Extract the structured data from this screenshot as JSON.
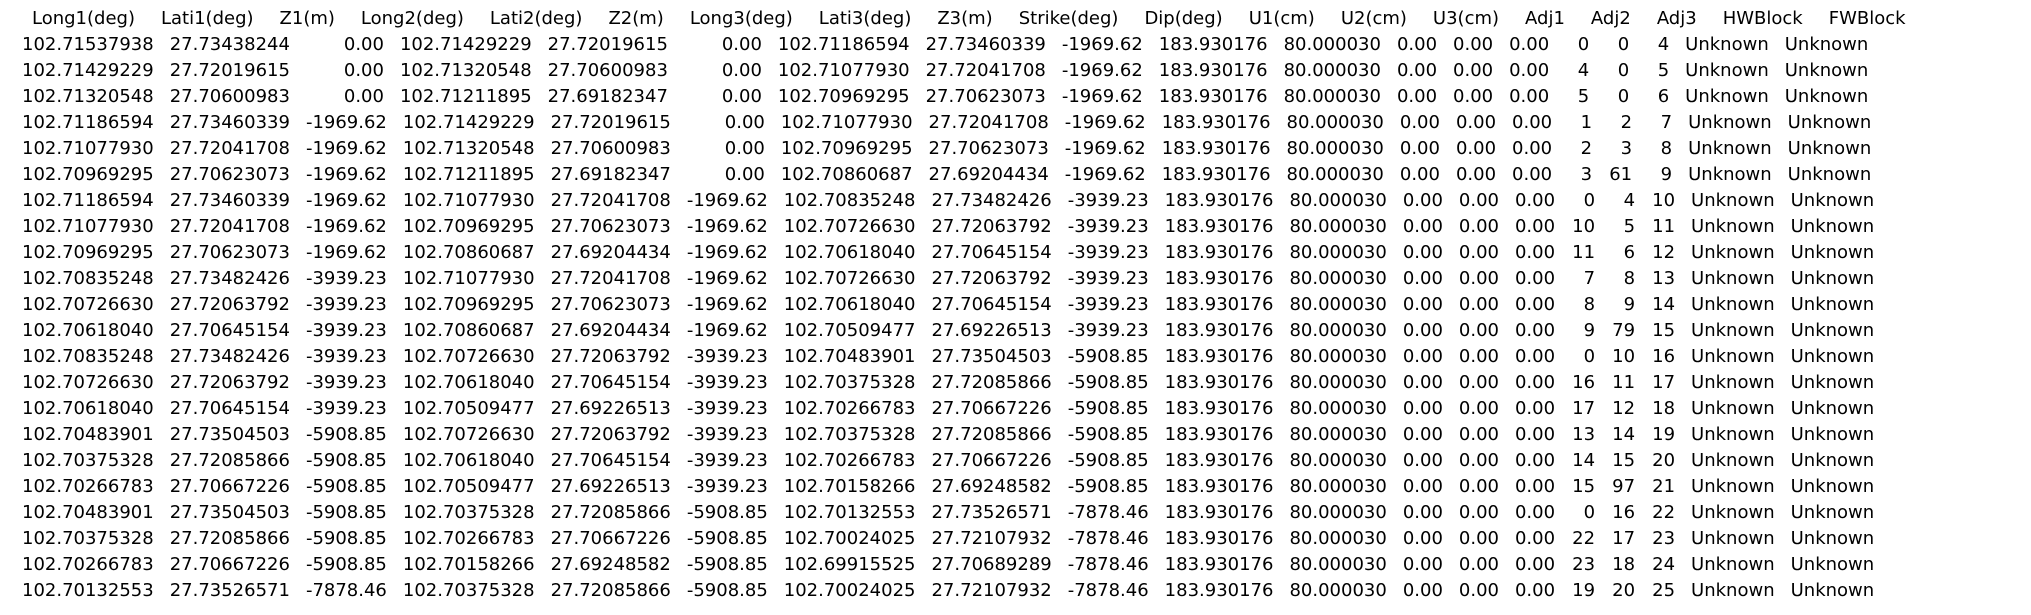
{
  "table": {
    "header": [
      "Long1(deg)",
      "Lati1(deg)",
      "Z1(m)",
      "Long2(deg)",
      "Lati2(deg)",
      "Z2(m)",
      "Long3(deg)",
      "Lati3(deg)",
      "Z3(m)",
      "Strike(deg)",
      "Dip(deg)",
      "U1(cm)",
      "U2(cm)",
      "U3(cm)",
      "Adj1",
      "Adj2",
      "Adj3",
      "HWBlock",
      "FWBlock"
    ],
    "rows": [
      [
        "102.71537938",
        "27.73438244",
        "0.00",
        "102.71429229",
        "27.72019615",
        "0.00",
        "102.71186594",
        "27.73460339",
        "-1969.62",
        "183.930176",
        "80.000030",
        "0.00",
        "0.00",
        "0.00",
        "0",
        "0",
        "4",
        "Unknown",
        "Unknown"
      ],
      [
        "102.71429229",
        "27.72019615",
        "0.00",
        "102.71320548",
        "27.70600983",
        "0.00",
        "102.71077930",
        "27.72041708",
        "-1969.62",
        "183.930176",
        "80.000030",
        "0.00",
        "0.00",
        "0.00",
        "4",
        "0",
        "5",
        "Unknown",
        "Unknown"
      ],
      [
        "102.71320548",
        "27.70600983",
        "0.00",
        "102.71211895",
        "27.69182347",
        "0.00",
        "102.70969295",
        "27.70623073",
        "-1969.62",
        "183.930176",
        "80.000030",
        "0.00",
        "0.00",
        "0.00",
        "5",
        "0",
        "6",
        "Unknown",
        "Unknown"
      ],
      [
        "102.71186594",
        "27.73460339",
        "-1969.62",
        "102.71429229",
        "27.72019615",
        "0.00",
        "102.71077930",
        "27.72041708",
        "-1969.62",
        "183.930176",
        "80.000030",
        "0.00",
        "0.00",
        "0.00",
        "1",
        "2",
        "7",
        "Unknown",
        "Unknown"
      ],
      [
        "102.71077930",
        "27.72041708",
        "-1969.62",
        "102.71320548",
        "27.70600983",
        "0.00",
        "102.70969295",
        "27.70623073",
        "-1969.62",
        "183.930176",
        "80.000030",
        "0.00",
        "0.00",
        "0.00",
        "2",
        "3",
        "8",
        "Unknown",
        "Unknown"
      ],
      [
        "102.70969295",
        "27.70623073",
        "-1969.62",
        "102.71211895",
        "27.69182347",
        "0.00",
        "102.70860687",
        "27.69204434",
        "-1969.62",
        "183.930176",
        "80.000030",
        "0.00",
        "0.00",
        "0.00",
        "3",
        "61",
        "9",
        "Unknown",
        "Unknown"
      ],
      [
        "102.71186594",
        "27.73460339",
        "-1969.62",
        "102.71077930",
        "27.72041708",
        "-1969.62",
        "102.70835248",
        "27.73482426",
        "-3939.23",
        "183.930176",
        "80.000030",
        "0.00",
        "0.00",
        "0.00",
        "0",
        "4",
        "10",
        "Unknown",
        "Unknown"
      ],
      [
        "102.71077930",
        "27.72041708",
        "-1969.62",
        "102.70969295",
        "27.70623073",
        "-1969.62",
        "102.70726630",
        "27.72063792",
        "-3939.23",
        "183.930176",
        "80.000030",
        "0.00",
        "0.00",
        "0.00",
        "10",
        "5",
        "11",
        "Unknown",
        "Unknown"
      ],
      [
        "102.70969295",
        "27.70623073",
        "-1969.62",
        "102.70860687",
        "27.69204434",
        "-1969.62",
        "102.70618040",
        "27.70645154",
        "-3939.23",
        "183.930176",
        "80.000030",
        "0.00",
        "0.00",
        "0.00",
        "11",
        "6",
        "12",
        "Unknown",
        "Unknown"
      ],
      [
        "102.70835248",
        "27.73482426",
        "-3939.23",
        "102.71077930",
        "27.72041708",
        "-1969.62",
        "102.70726630",
        "27.72063792",
        "-3939.23",
        "183.930176",
        "80.000030",
        "0.00",
        "0.00",
        "0.00",
        "7",
        "8",
        "13",
        "Unknown",
        "Unknown"
      ],
      [
        "102.70726630",
        "27.72063792",
        "-3939.23",
        "102.70969295",
        "27.70623073",
        "-1969.62",
        "102.70618040",
        "27.70645154",
        "-3939.23",
        "183.930176",
        "80.000030",
        "0.00",
        "0.00",
        "0.00",
        "8",
        "9",
        "14",
        "Unknown",
        "Unknown"
      ],
      [
        "102.70618040",
        "27.70645154",
        "-3939.23",
        "102.70860687",
        "27.69204434",
        "-1969.62",
        "102.70509477",
        "27.69226513",
        "-3939.23",
        "183.930176",
        "80.000030",
        "0.00",
        "0.00",
        "0.00",
        "9",
        "79",
        "15",
        "Unknown",
        "Unknown"
      ],
      [
        "102.70835248",
        "27.73482426",
        "-3939.23",
        "102.70726630",
        "27.72063792",
        "-3939.23",
        "102.70483901",
        "27.73504503",
        "-5908.85",
        "183.930176",
        "80.000030",
        "0.00",
        "0.00",
        "0.00",
        "0",
        "10",
        "16",
        "Unknown",
        "Unknown"
      ],
      [
        "102.70726630",
        "27.72063792",
        "-3939.23",
        "102.70618040",
        "27.70645154",
        "-3939.23",
        "102.70375328",
        "27.72085866",
        "-5908.85",
        "183.930176",
        "80.000030",
        "0.00",
        "0.00",
        "0.00",
        "16",
        "11",
        "17",
        "Unknown",
        "Unknown"
      ],
      [
        "102.70618040",
        "27.70645154",
        "-3939.23",
        "102.70509477",
        "27.69226513",
        "-3939.23",
        "102.70266783",
        "27.70667226",
        "-5908.85",
        "183.930176",
        "80.000030",
        "0.00",
        "0.00",
        "0.00",
        "17",
        "12",
        "18",
        "Unknown",
        "Unknown"
      ],
      [
        "102.70483901",
        "27.73504503",
        "-5908.85",
        "102.70726630",
        "27.72063792",
        "-3939.23",
        "102.70375328",
        "27.72085866",
        "-5908.85",
        "183.930176",
        "80.000030",
        "0.00",
        "0.00",
        "0.00",
        "13",
        "14",
        "19",
        "Unknown",
        "Unknown"
      ],
      [
        "102.70375328",
        "27.72085866",
        "-5908.85",
        "102.70618040",
        "27.70645154",
        "-3939.23",
        "102.70266783",
        "27.70667226",
        "-5908.85",
        "183.930176",
        "80.000030",
        "0.00",
        "0.00",
        "0.00",
        "14",
        "15",
        "20",
        "Unknown",
        "Unknown"
      ],
      [
        "102.70266783",
        "27.70667226",
        "-5908.85",
        "102.70509477",
        "27.69226513",
        "-3939.23",
        "102.70158266",
        "27.69248582",
        "-5908.85",
        "183.930176",
        "80.000030",
        "0.00",
        "0.00",
        "0.00",
        "15",
        "97",
        "21",
        "Unknown",
        "Unknown"
      ],
      [
        "102.70483901",
        "27.73504503",
        "-5908.85",
        "102.70375328",
        "27.72085866",
        "-5908.85",
        "102.70132553",
        "27.73526571",
        "-7878.46",
        "183.930176",
        "80.000030",
        "0.00",
        "0.00",
        "0.00",
        "0",
        "16",
        "22",
        "Unknown",
        "Unknown"
      ],
      [
        "102.70375328",
        "27.72085866",
        "-5908.85",
        "102.70266783",
        "27.70667226",
        "-5908.85",
        "102.70024025",
        "27.72107932",
        "-7878.46",
        "183.930176",
        "80.000030",
        "0.00",
        "0.00",
        "0.00",
        "22",
        "17",
        "23",
        "Unknown",
        "Unknown"
      ],
      [
        "102.70266783",
        "27.70667226",
        "-5908.85",
        "102.70158266",
        "27.69248582",
        "-5908.85",
        "102.69915525",
        "27.70689289",
        "-7878.46",
        "183.930176",
        "80.000030",
        "0.00",
        "0.00",
        "0.00",
        "23",
        "18",
        "24",
        "Unknown",
        "Unknown"
      ],
      [
        "102.70132553",
        "27.73526571",
        "-7878.46",
        "102.70375328",
        "27.72085866",
        "-5908.85",
        "102.70024025",
        "27.72107932",
        "-7878.46",
        "183.930176",
        "80.000030",
        "0.00",
        "0.00",
        "0.00",
        "19",
        "20",
        "25",
        "Unknown",
        "Unknown"
      ]
    ]
  }
}
